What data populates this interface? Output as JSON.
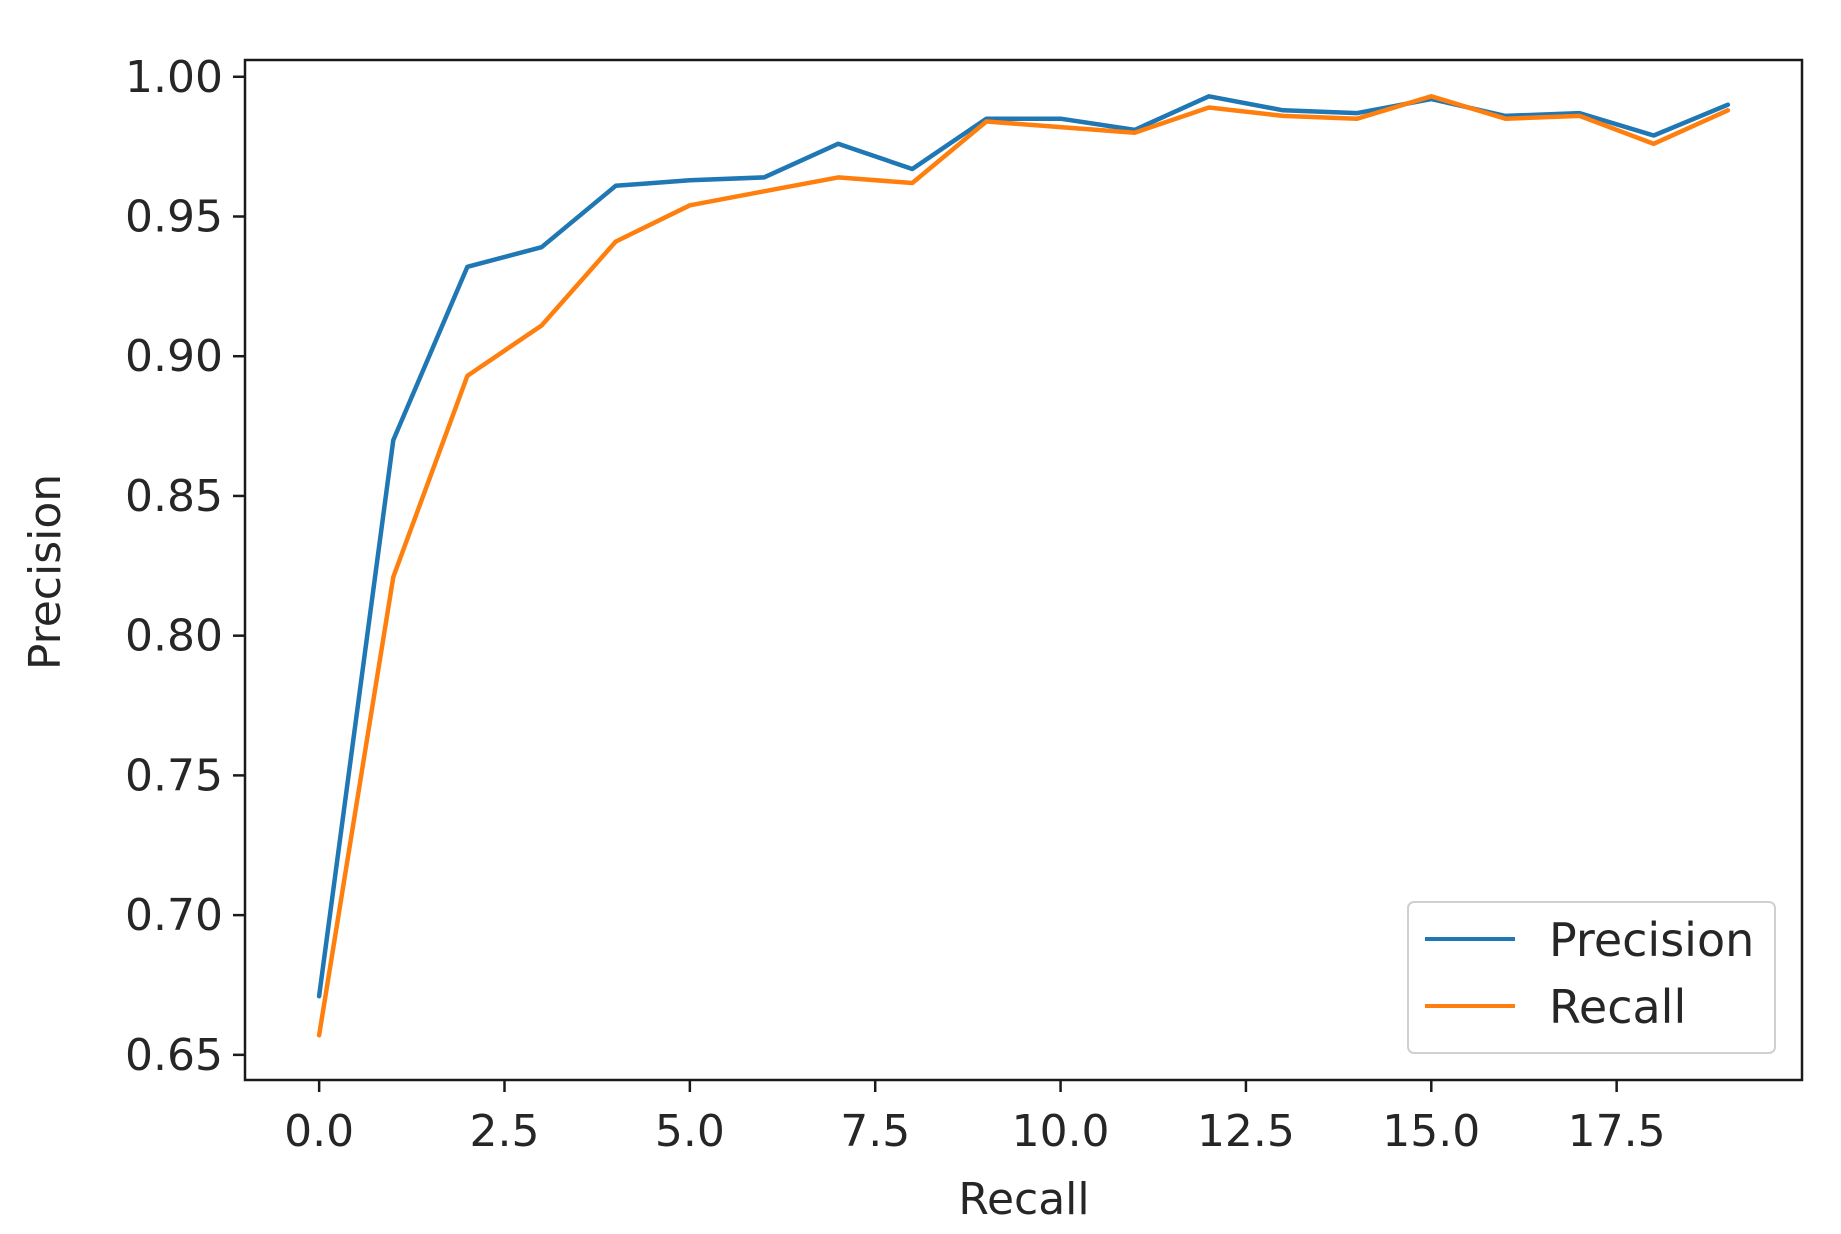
{
  "chart_data": {
    "type": "line",
    "title": "",
    "xlabel": "Recall",
    "ylabel": "Precision",
    "xlim": [
      -1.0,
      20.0
    ],
    "ylim": [
      0.641,
      1.006
    ],
    "grid": false,
    "legend_position": "lower-right",
    "x_ticks": [
      0.0,
      2.5,
      5.0,
      7.5,
      10.0,
      12.5,
      15.0,
      17.5
    ],
    "x_tick_labels": [
      "0.0",
      "2.5",
      "5.0",
      "7.5",
      "10.0",
      "12.5",
      "15.0",
      "17.5"
    ],
    "y_ticks": [
      0.65,
      0.7,
      0.75,
      0.8,
      0.85,
      0.9,
      0.95,
      1.0
    ],
    "y_tick_labels": [
      "0.65",
      "0.70",
      "0.75",
      "0.80",
      "0.85",
      "0.90",
      "0.95",
      "1.00"
    ],
    "x": [
      0,
      1,
      2,
      3,
      4,
      5,
      6,
      7,
      8,
      9,
      10,
      11,
      12,
      13,
      14,
      15,
      16,
      17,
      18,
      19
    ],
    "series": [
      {
        "name": "Precision",
        "color": "#1f77b4",
        "values": [
          0.671,
          0.87,
          0.932,
          0.939,
          0.961,
          0.963,
          0.964,
          0.976,
          0.967,
          0.985,
          0.985,
          0.981,
          0.993,
          0.988,
          0.987,
          0.992,
          0.986,
          0.987,
          0.979,
          0.99
        ]
      },
      {
        "name": "Recall",
        "color": "#ff7f0e",
        "values": [
          0.657,
          0.821,
          0.893,
          0.911,
          0.941,
          0.954,
          0.959,
          0.964,
          0.962,
          0.984,
          0.982,
          0.98,
          0.989,
          0.986,
          0.985,
          0.993,
          0.985,
          0.986,
          0.976,
          0.988
        ]
      }
    ]
  }
}
